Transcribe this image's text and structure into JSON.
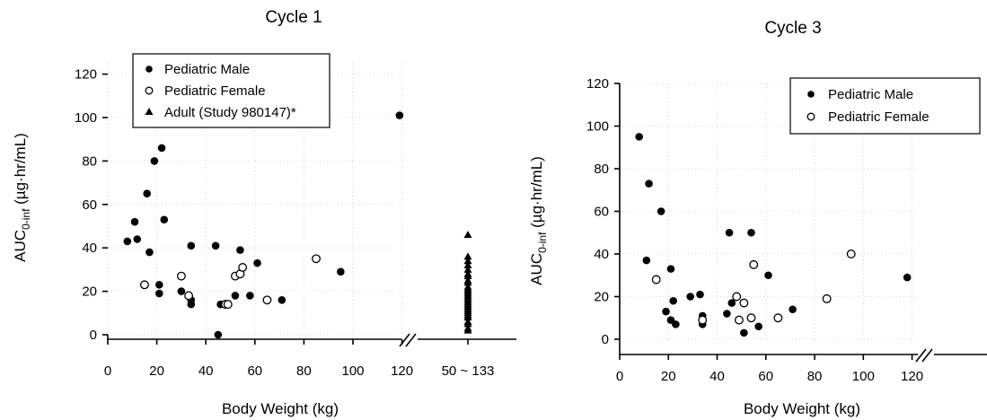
{
  "chart_data": [
    {
      "type": "scatter",
      "title": "Cycle 1",
      "xlabel": "Body Weight (kg)",
      "ylabel": "AUC0-inf (µg·hr/mL)",
      "ylabel_main": "AUC",
      "ylabel_sub": "0-inf",
      "ylabel_rest": " (µg·hr/mL)",
      "xlim": [
        0,
        120
      ],
      "ylim": [
        0,
        120
      ],
      "x_ticks": [
        "0",
        "20",
        "40",
        "60",
        "80",
        "100",
        "120"
      ],
      "y_ticks": [
        "0",
        "20",
        "40",
        "60",
        "80",
        "100",
        "120"
      ],
      "extra_x_tick": "50 ~ 133",
      "grid": true,
      "legend_position": "top-left",
      "series": [
        {
          "name": "Pediatric Male",
          "marker": "filled-circle",
          "points": [
            [
              8,
              43
            ],
            [
              11,
              52
            ],
            [
              12,
              44
            ],
            [
              16,
              65
            ],
            [
              17,
              38
            ],
            [
              19,
              80
            ],
            [
              21,
              23
            ],
            [
              21,
              19
            ],
            [
              22,
              86
            ],
            [
              23,
              53
            ],
            [
              30,
              20
            ],
            [
              34,
              41
            ],
            [
              34,
              14
            ],
            [
              34,
              16
            ],
            [
              44,
              41
            ],
            [
              45,
              0
            ],
            [
              46,
              14
            ],
            [
              52,
              18
            ],
            [
              54,
              39
            ],
            [
              58,
              18
            ],
            [
              61,
              33
            ],
            [
              71,
              16
            ],
            [
              95,
              29
            ],
            [
              119,
              101
            ]
          ]
        },
        {
          "name": "Pediatric Female",
          "marker": "open-circle",
          "points": [
            [
              15,
              23
            ],
            [
              30,
              27
            ],
            [
              33,
              18
            ],
            [
              48,
              14
            ],
            [
              49,
              14
            ],
            [
              52,
              27
            ],
            [
              54,
              28
            ],
            [
              55,
              31
            ],
            [
              65,
              16
            ],
            [
              85,
              35
            ]
          ]
        },
        {
          "name": "Adult (Study 980147)*",
          "marker": "filled-triangle",
          "points": [
            [
              133,
              46
            ],
            [
              133,
              36
            ],
            [
              133,
              34
            ],
            [
              133,
              32
            ],
            [
              133,
              30
            ],
            [
              133,
              28
            ],
            [
              133,
              27
            ],
            [
              133,
              25
            ],
            [
              133,
              24
            ],
            [
              133,
              22
            ],
            [
              133,
              21
            ],
            [
              133,
              20
            ],
            [
              133,
              19
            ],
            [
              133,
              18
            ],
            [
              133,
              17
            ],
            [
              133,
              16
            ],
            [
              133,
              15
            ],
            [
              133,
              14
            ],
            [
              133,
              13
            ],
            [
              133,
              12
            ],
            [
              133,
              11
            ],
            [
              133,
              10
            ],
            [
              133,
              9
            ],
            [
              133,
              8
            ],
            [
              133,
              6
            ],
            [
              133,
              5
            ],
            [
              133,
              3
            ],
            [
              133,
              2
            ]
          ]
        }
      ]
    },
    {
      "type": "scatter",
      "title": "Cycle 3",
      "xlabel": "Body Weight (kg)",
      "ylabel": "AUC0-inf (µg·hr/mL)",
      "ylabel_main": "AUC",
      "ylabel_sub": "0-inf",
      "ylabel_rest": " (µg·hr/mL)",
      "xlim": [
        0,
        120
      ],
      "ylim": [
        0,
        120
      ],
      "x_ticks": [
        "0",
        "20",
        "40",
        "60",
        "80",
        "100",
        "120"
      ],
      "y_ticks": [
        "0",
        "20",
        "40",
        "60",
        "80",
        "100",
        "120"
      ],
      "grid": true,
      "legend_position": "top-right",
      "series": [
        {
          "name": "Pediatric Male",
          "marker": "filled-circle",
          "points": [
            [
              8,
              95
            ],
            [
              11,
              37
            ],
            [
              12,
              73
            ],
            [
              17,
              60
            ],
            [
              19,
              13
            ],
            [
              21,
              9
            ],
            [
              21,
              33
            ],
            [
              22,
              18
            ],
            [
              23,
              7
            ],
            [
              29,
              20
            ],
            [
              33,
              21
            ],
            [
              34,
              11
            ],
            [
              34,
              7
            ],
            [
              44,
              12
            ],
            [
              45,
              50
            ],
            [
              46,
              17
            ],
            [
              51,
              3
            ],
            [
              54,
              50
            ],
            [
              57,
              6
            ],
            [
              61,
              30
            ],
            [
              71,
              14
            ],
            [
              118,
              29
            ]
          ]
        },
        {
          "name": "Pediatric Female",
          "marker": "open-circle",
          "points": [
            [
              15,
              28
            ],
            [
              34,
              9
            ],
            [
              48,
              20
            ],
            [
              49,
              9
            ],
            [
              51,
              17
            ],
            [
              54,
              10
            ],
            [
              55,
              35
            ],
            [
              65,
              10
            ],
            [
              85,
              19
            ],
            [
              95,
              40
            ]
          ]
        }
      ]
    }
  ]
}
